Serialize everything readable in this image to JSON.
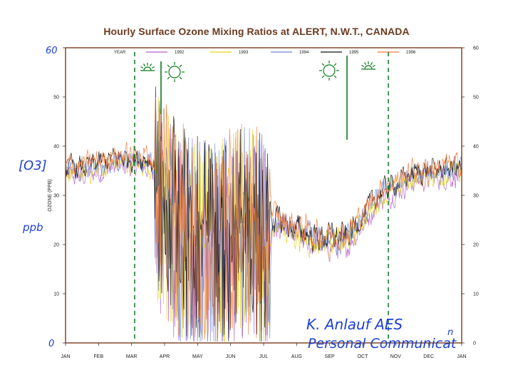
{
  "chart_data": {
    "type": "line",
    "title": "Hourly Surface Ozone Mixing Ratios at ALERT, N.W.T., CANADA",
    "ylabel": "OZONE (PPB)",
    "ylim": [
      0,
      60
    ],
    "yticks": [
      0,
      10,
      20,
      30,
      40,
      50,
      60
    ],
    "xlim": [
      0,
      12
    ],
    "months": [
      "JAN",
      "FEB",
      "MAR",
      "APR",
      "MAY",
      "JUN",
      "JUL",
      "AUG",
      "SEP",
      "OCT",
      "NOV",
      "DEC",
      "JAN"
    ],
    "legend_title": "YEAR",
    "legend_placement": "top",
    "series": [
      {
        "name": "1992",
        "color": "#b05fd0"
      },
      {
        "name": "1993",
        "color": "#e6d21a"
      },
      {
        "name": "1994",
        "color": "#6e86d6"
      },
      {
        "name": "1995",
        "color": "#111111"
      },
      {
        "name": "1996",
        "color": "#f07a3a"
      }
    ],
    "monthly_mean_ppb": {
      "x": [
        0.5,
        1.5,
        2.5,
        3.5,
        4.5,
        5.5,
        6.5,
        7.5,
        8.5,
        9.5,
        10.5,
        11.5
      ],
      "values": [
        35,
        37,
        37,
        26,
        24,
        27,
        24,
        21,
        21,
        30,
        34,
        35
      ]
    },
    "grid": false
  },
  "annotations": {
    "y_top_hand": "60",
    "y_zero_hand": "0",
    "o3_label": "[O3]",
    "ppb_label": "ppb",
    "credit_line1": "K. Anlauf AES",
    "credit_line2": "Personal Communicat",
    "credit_sup": "n"
  },
  "colors": {
    "frame": "#7a3b1a",
    "annotation": "#1b3fd6",
    "marker_lines": "#0a7a1a"
  }
}
